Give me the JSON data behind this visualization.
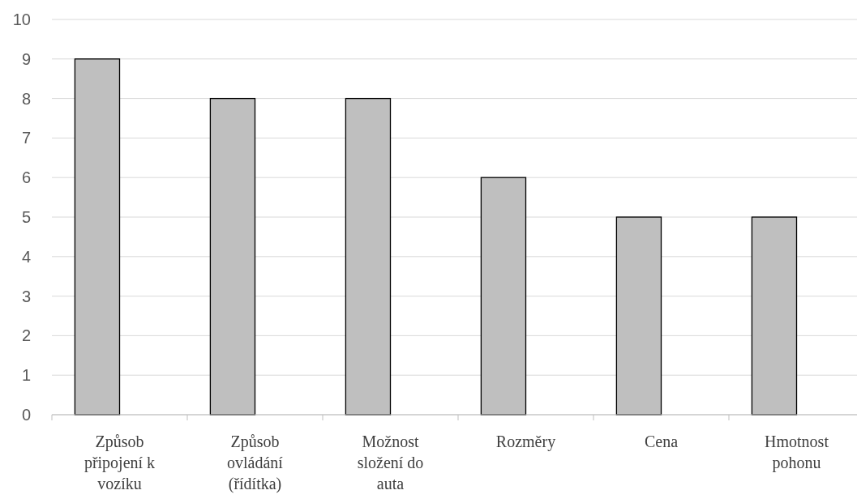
{
  "chart_data": {
    "type": "bar",
    "categories": [
      "Způsob připojení k vozíku",
      "Způsob ovládání (řídítka)",
      "Možnost složení do auta",
      "Rozměry",
      "Cena",
      "Hmotnost pohonu"
    ],
    "values": [
      9,
      8,
      8,
      6,
      5,
      5
    ],
    "color": "#bfbfbf",
    "ylim": [
      0,
      10
    ],
    "yticks": [
      0,
      1,
      2,
      3,
      4,
      5,
      6,
      7,
      8,
      9,
      10
    ],
    "grid": "y"
  }
}
